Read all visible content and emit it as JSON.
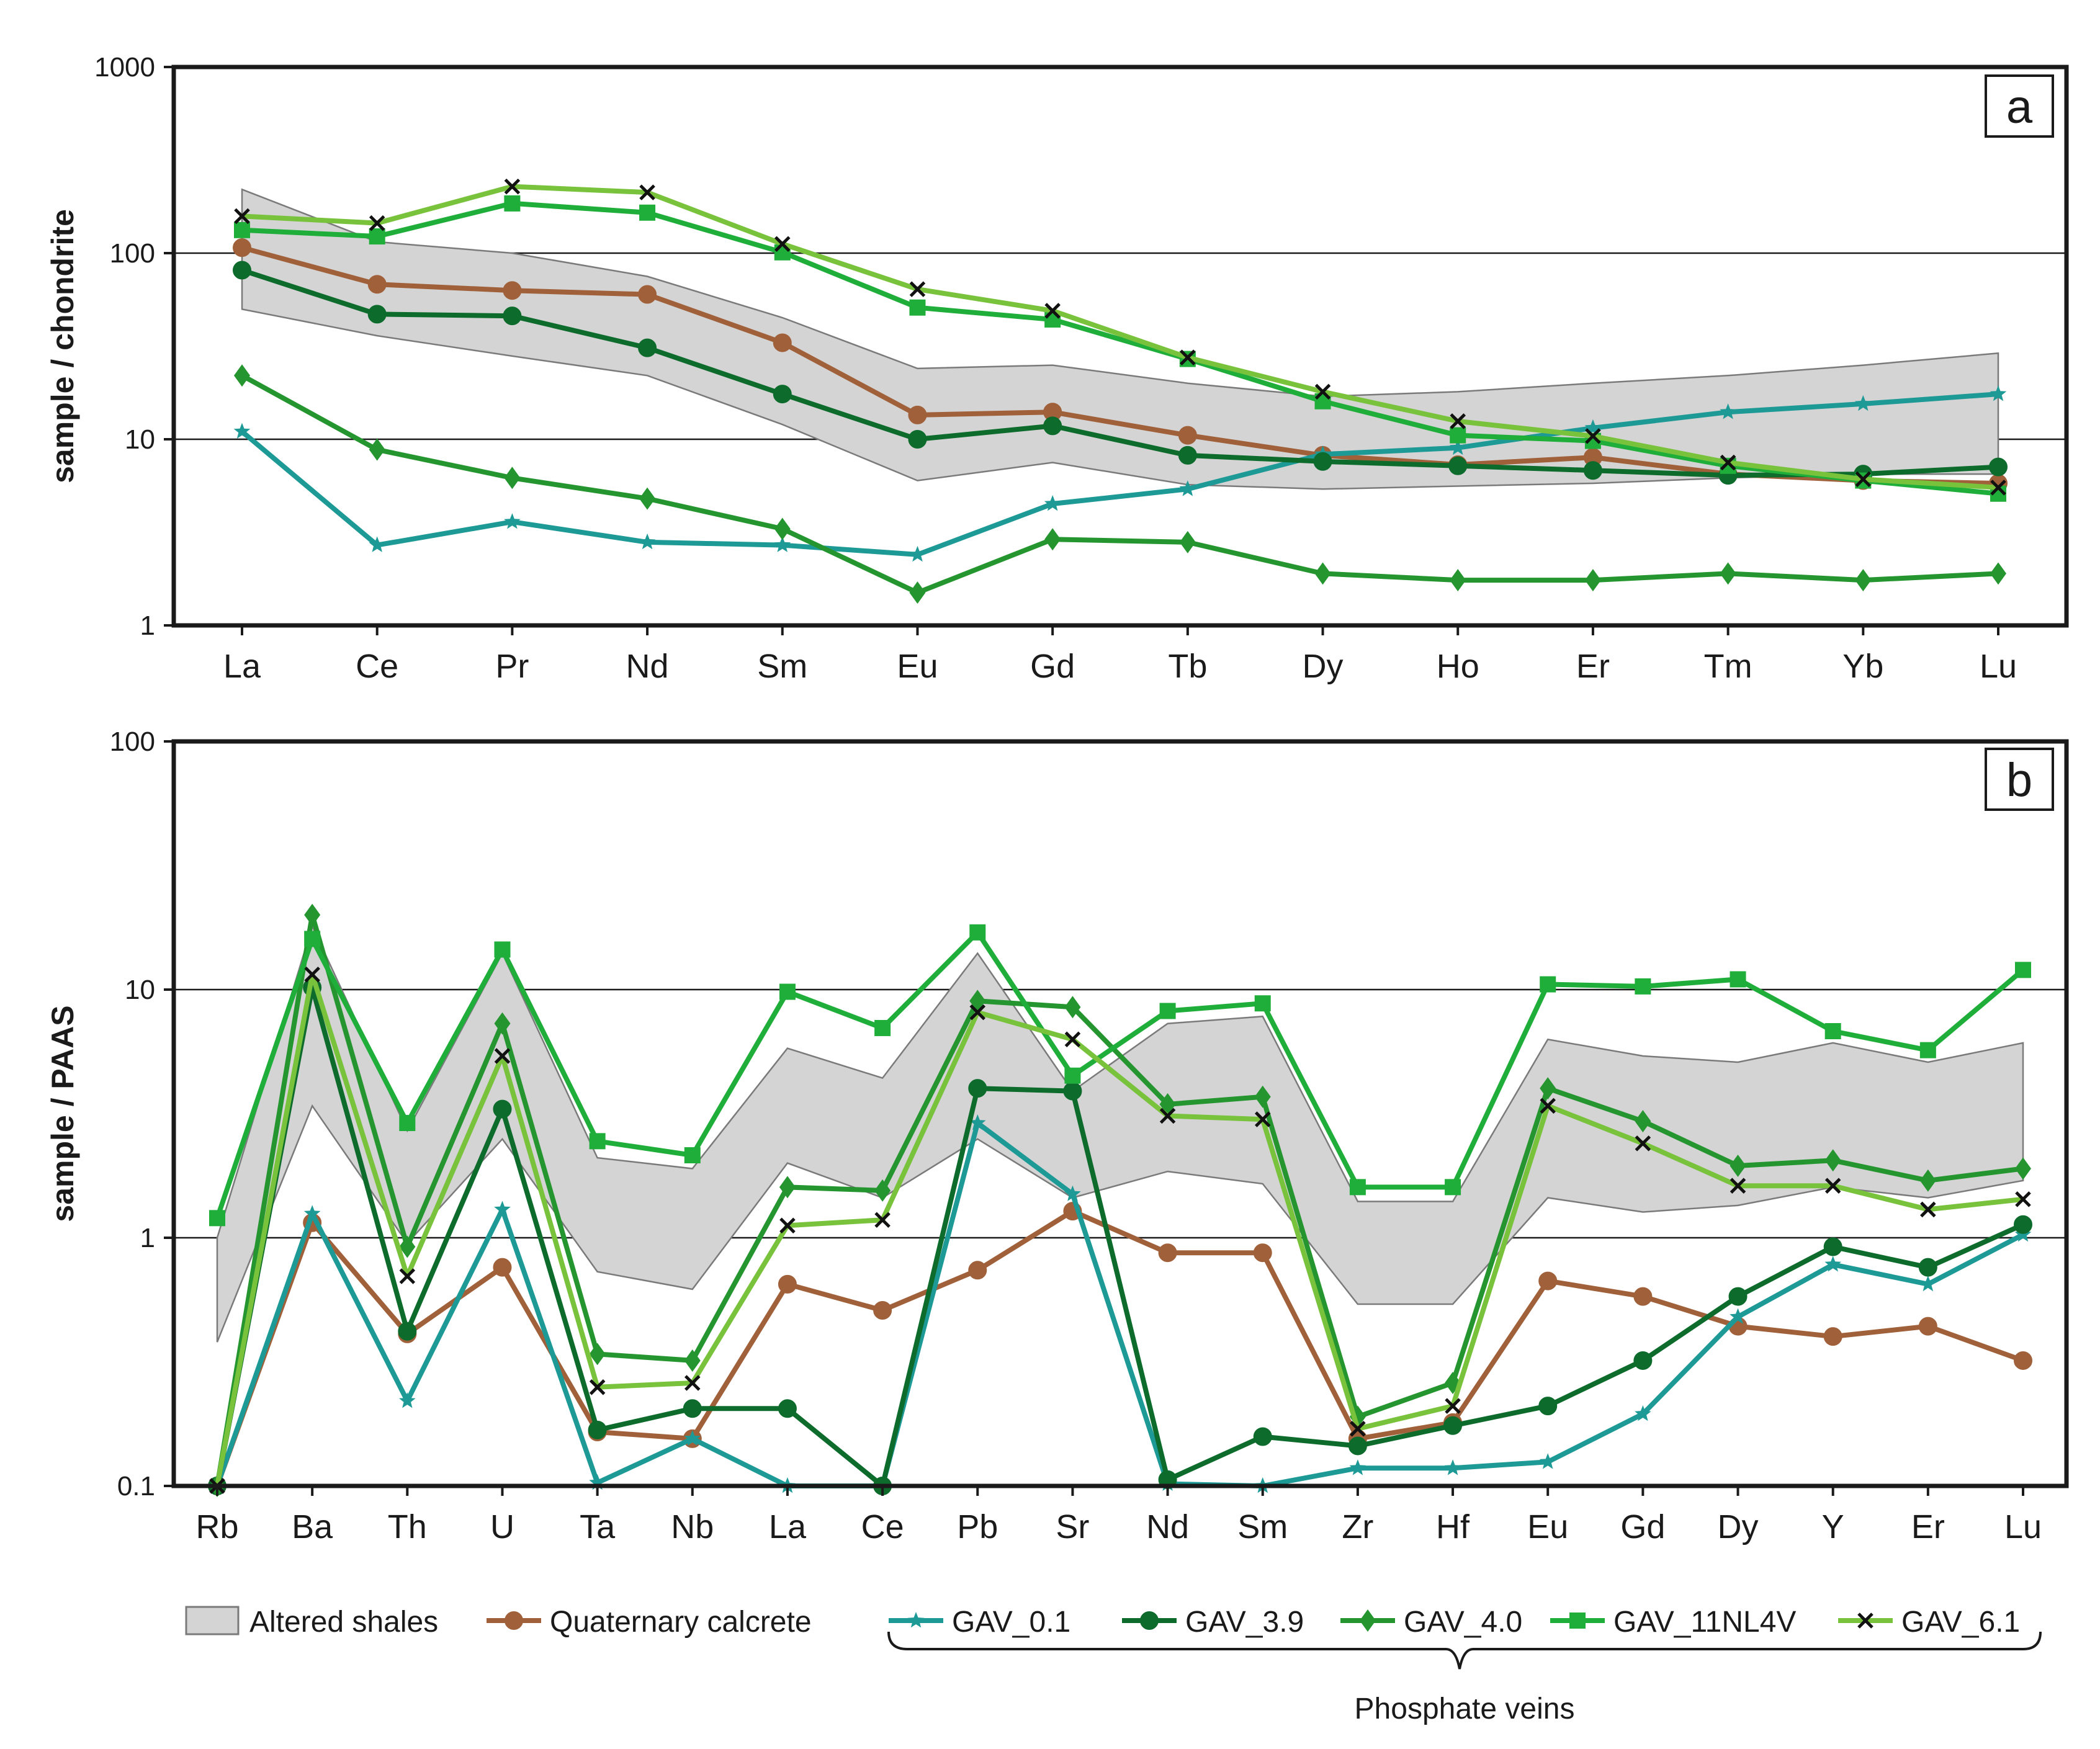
{
  "colors": {
    "band_fill": "#d4d4d4",
    "band_stroke": "#7a7a7a",
    "calcrete": "#a0603a",
    "GAV_0.1": "#1e9a96",
    "GAV_3.9": "#0d6b2c",
    "GAV_4.0": "#25962f",
    "GAV_11NL4V": "#1fae3a",
    "GAV_6.1": "#78c23c",
    "cross": "#111111"
  },
  "legend": {
    "band": "Altered shales",
    "calcrete": "Quaternary calcrete",
    "s1": "GAV_0.1",
    "s2": "GAV_3.9",
    "s3": "GAV_4.0",
    "s4": "GAV_11NL4V",
    "s5": "GAV_6.1",
    "brace_label": "Phosphate veins"
  },
  "chart_data": [
    {
      "type": "line",
      "panel": "a",
      "scale": "log",
      "ylabel": "sample / chondrite",
      "xlabel": "",
      "ylim": [
        1,
        1000
      ],
      "yticks": [
        "1",
        "10",
        "100",
        "1000"
      ],
      "grid": "horizontal at 10 and 100",
      "categories": [
        "La",
        "Ce",
        "Pr",
        "Nd",
        "Sm",
        "Eu",
        "Gd",
        "Tb",
        "Dy",
        "Ho",
        "Er",
        "Tm",
        "Yb",
        "Lu"
      ],
      "band": {
        "name": "Altered shales",
        "upper": [
          220,
          115,
          100,
          75,
          45,
          24,
          25,
          20,
          17,
          18,
          20,
          22,
          25,
          29
        ],
        "lower": [
          50,
          36,
          28,
          22,
          12,
          6,
          7.5,
          5.7,
          5.4,
          5.6,
          5.8,
          6.2,
          6.5,
          6.5
        ]
      },
      "series": [
        {
          "name": "Quaternary calcrete",
          "marker": "circle",
          "values": [
            107,
            68,
            63,
            60,
            33,
            13.5,
            14,
            10.5,
            8.2,
            7.3,
            8.0,
            6.5,
            6.0,
            5.8
          ]
        },
        {
          "name": "GAV_0.1",
          "marker": "star",
          "values": [
            11,
            2.7,
            3.6,
            2.8,
            2.7,
            2.4,
            4.5,
            5.4,
            8.3,
            9.0,
            11.5,
            14,
            15.5,
            17.5
          ]
        },
        {
          "name": "GAV_3.9",
          "marker": "circle",
          "values": [
            81,
            47,
            46,
            31,
            17.5,
            10,
            11.8,
            8.2,
            7.6,
            7.2,
            6.8,
            6.4,
            6.5,
            7.1
          ]
        },
        {
          "name": "GAV_4.0",
          "marker": "diamond",
          "values": [
            22,
            8.8,
            6.2,
            4.8,
            3.3,
            1.5,
            2.9,
            2.8,
            1.9,
            1.75,
            1.75,
            1.9,
            1.75,
            1.9
          ]
        },
        {
          "name": "GAV_11NL4V",
          "marker": "square",
          "values": [
            133,
            123,
            185,
            165,
            101,
            51,
            44,
            27,
            16,
            10.5,
            9.8,
            7.2,
            6.0,
            5.1
          ]
        },
        {
          "name": "GAV_6.1",
          "marker": "cross",
          "values": [
            158,
            145,
            228,
            212,
            112,
            64,
            49,
            27.5,
            18,
            12.5,
            10.4,
            7.5,
            6.1,
            5.5
          ]
        }
      ]
    },
    {
      "type": "line",
      "panel": "b",
      "scale": "log",
      "ylabel": "sample / PAAS",
      "xlabel": "",
      "ylim": [
        0.1,
        100
      ],
      "yticks": [
        "0.1",
        "1",
        "10",
        "100"
      ],
      "grid": "horizontal at 1 and 10",
      "categories": [
        "Rb",
        "Ba",
        "Th",
        "U",
        "Ta",
        "Nb",
        "La",
        "Ce",
        "Pb",
        "Sr",
        "Nd",
        "Sm",
        "Zr",
        "Hf",
        "Eu",
        "Gd",
        "Dy",
        "Y",
        "Er",
        "Lu"
      ],
      "band": {
        "name": "Altered shales",
        "upper": [
          1.0,
          18,
          2.7,
          14,
          2.1,
          1.9,
          5.8,
          4.4,
          14,
          3.9,
          7.3,
          7.8,
          1.4,
          1.4,
          6.3,
          5.4,
          5.1,
          6.1,
          5.1,
          6.1
        ],
        "lower": [
          0.38,
          3.4,
          0.95,
          2.5,
          0.73,
          0.62,
          2.0,
          1.45,
          2.5,
          1.45,
          1.85,
          1.65,
          0.54,
          0.54,
          1.45,
          1.27,
          1.35,
          1.6,
          1.45,
          1.7
        ]
      },
      "series": [
        {
          "name": "Quaternary calcrete",
          "marker": "circle",
          "values": [
            0.1,
            1.15,
            0.41,
            0.76,
            0.165,
            0.155,
            0.65,
            0.51,
            0.74,
            1.28,
            0.87,
            0.87,
            0.155,
            0.18,
            0.67,
            0.58,
            0.44,
            0.4,
            0.44,
            0.32
          ]
        },
        {
          "name": "GAV_0.1",
          "marker": "star",
          "values": [
            0.1,
            1.25,
            0.22,
            1.3,
            0.103,
            0.155,
            0.1,
            0.1,
            2.9,
            1.5,
            0.102,
            0.1,
            0.118,
            0.118,
            0.125,
            0.195,
            0.48,
            0.78,
            0.65,
            1.03
          ]
        },
        {
          "name": "GAV_3.9",
          "marker": "circle",
          "values": [
            0.1,
            10.2,
            0.42,
            3.3,
            0.168,
            0.205,
            0.205,
            0.1,
            4.0,
            3.9,
            0.106,
            0.158,
            0.145,
            0.175,
            0.21,
            0.32,
            0.58,
            0.92,
            0.76,
            1.13
          ]
        },
        {
          "name": "GAV_4.0",
          "marker": "diamond",
          "values": [
            0.1,
            20,
            0.92,
            7.3,
            0.34,
            0.32,
            1.6,
            1.55,
            9.0,
            8.5,
            3.45,
            3.7,
            0.19,
            0.26,
            4.0,
            2.95,
            1.95,
            2.05,
            1.7,
            1.9
          ]
        },
        {
          "name": "GAV_11NL4V",
          "marker": "square",
          "values": [
            1.2,
            16,
            2.9,
            14.5,
            2.45,
            2.15,
            9.8,
            7.0,
            17,
            4.5,
            8.2,
            8.8,
            1.6,
            1.6,
            10.5,
            10.3,
            11,
            6.8,
            5.7,
            12
          ]
        },
        {
          "name": "GAV_6.1",
          "marker": "cross",
          "values": [
            0.1,
            11.5,
            0.7,
            5.4,
            0.25,
            0.26,
            1.12,
            1.18,
            8.1,
            6.3,
            3.1,
            3.0,
            0.17,
            0.21,
            3.4,
            2.4,
            1.62,
            1.62,
            1.3,
            1.43
          ]
        }
      ]
    }
  ]
}
